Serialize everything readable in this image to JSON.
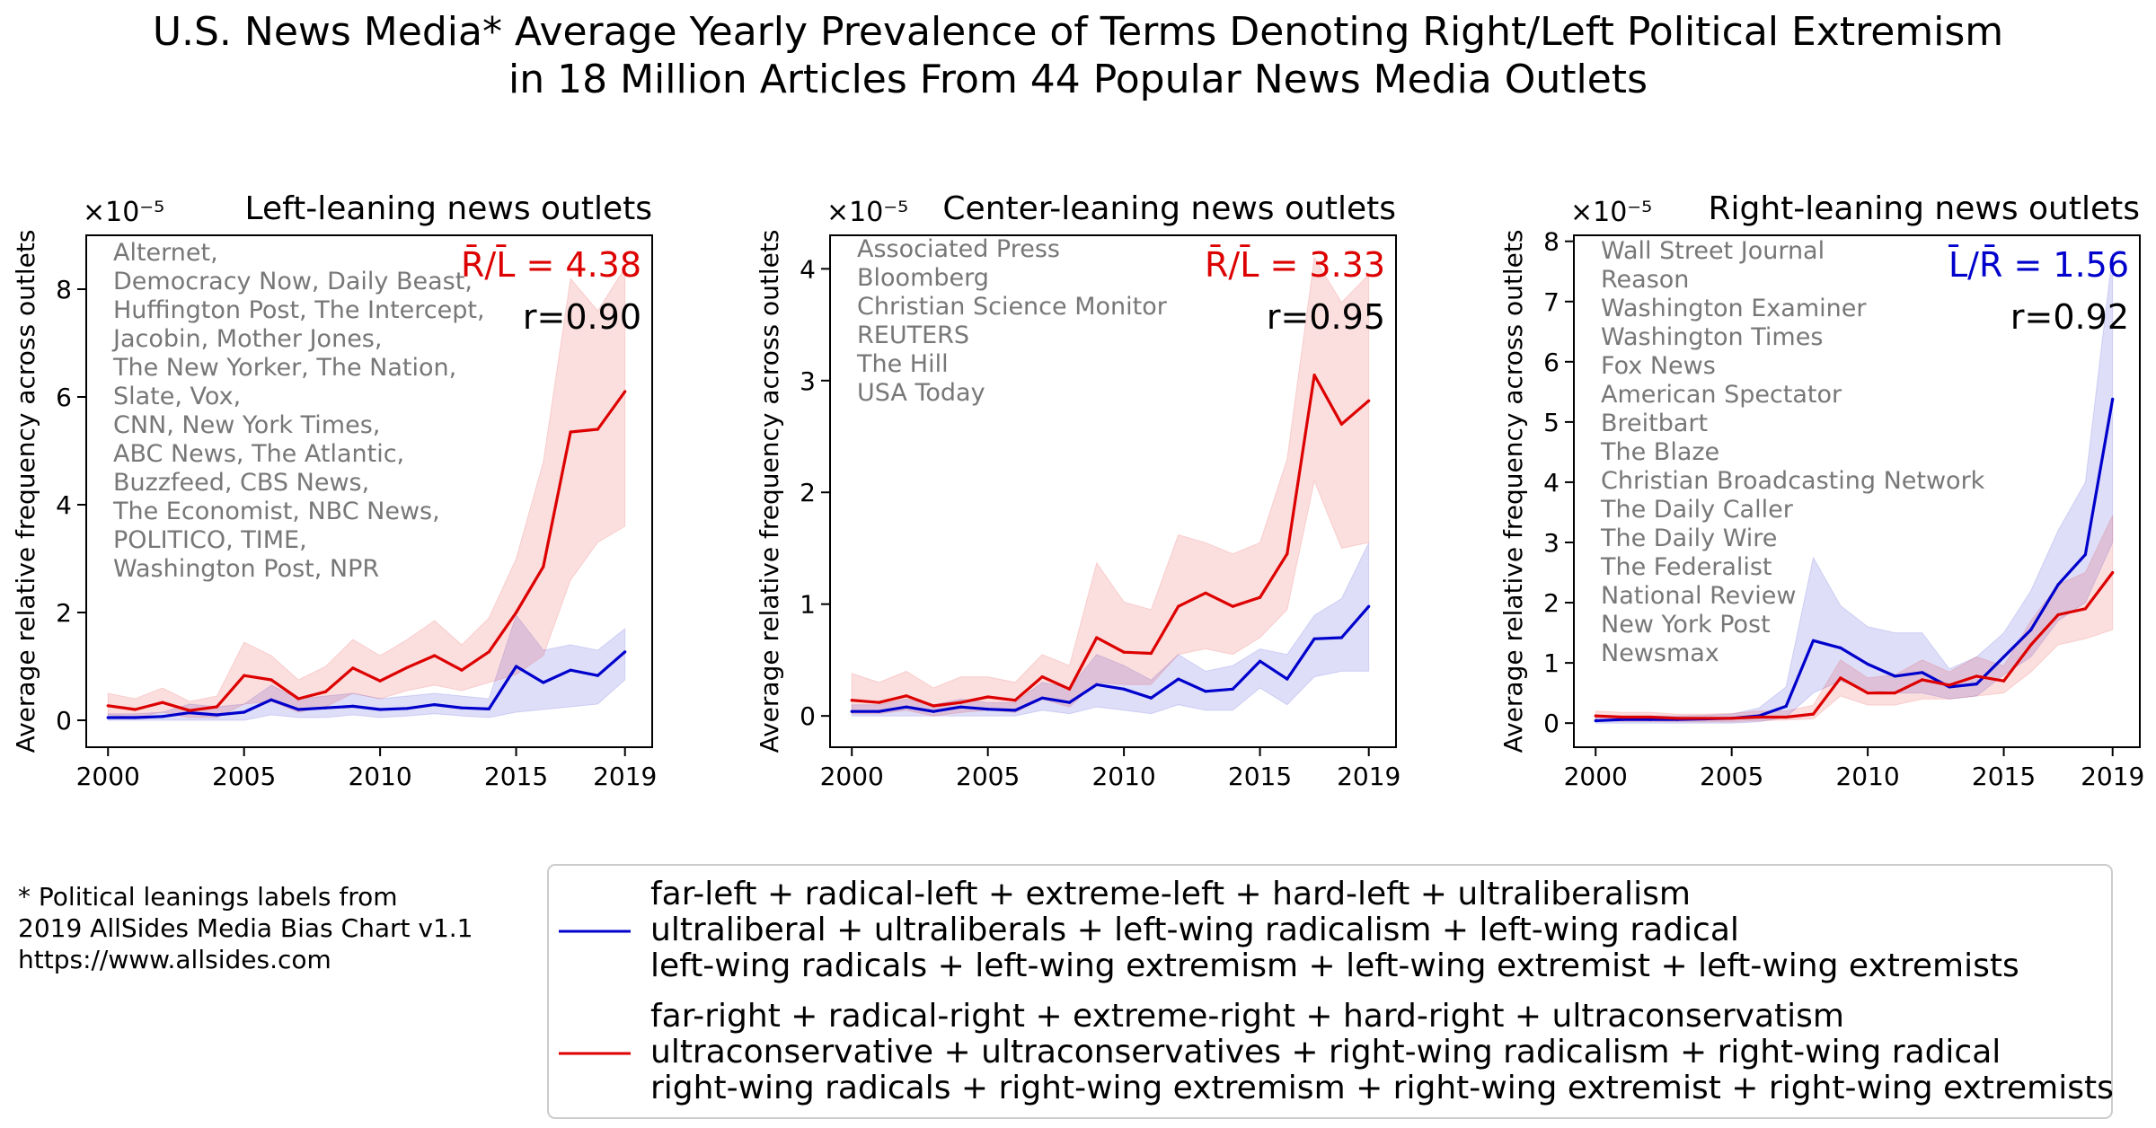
{
  "figure": {
    "title_lines": [
      "U.S. News Media* Average Yearly Prevalence of Terms Denoting Right/Left Political Extremism",
      "in 18 Million Articles From 44 Popular News Media Outlets"
    ],
    "footnote_lines": [
      "* Political leanings labels from",
      "2019 AllSides Media Bias Chart v1.1",
      "https://www.allsides.com"
    ],
    "colors": {
      "left_terms": "#0000cc",
      "right_terms": "#dd0000",
      "outlet_text": "#777777"
    }
  },
  "legend": {
    "entries": [
      {
        "color": "#0000cc",
        "lines": [
          "far-left + radical-left + extreme-left + hard-left + ultraliberalism",
          "ultraliberal + ultraliberals + left-wing radicalism + left-wing radical",
          "left-wing radicals + left-wing extremism + left-wing extremist + left-wing extremists"
        ]
      },
      {
        "color": "#dd0000",
        "lines": [
          "far-right + radical-right + extreme-right + hard-right + ultraconservatism",
          "ultraconservative + ultraconservatives + right-wing radicalism + right-wing radical",
          "right-wing radicals + right-wing extremism + right-wing extremist + right-wing extremists"
        ]
      }
    ]
  },
  "chart_data": [
    {
      "type": "line",
      "title": "Left-leaning news outlets",
      "ylabel": "Average relative frequency across outlets",
      "y_multiplier": "×10⁻⁵",
      "x": [
        2000,
        2001,
        2002,
        2003,
        2004,
        2005,
        2006,
        2007,
        2008,
        2009,
        2010,
        2011,
        2012,
        2013,
        2014,
        2015,
        2016,
        2017,
        2018,
        2019
      ],
      "xlim": [
        1999.2,
        2020.0
      ],
      "ylim": [
        -0.5,
        9.0
      ],
      "xticks": [
        "2000",
        "2005",
        "2010",
        "2015",
        "2019"
      ],
      "yticks": [
        "0",
        "2",
        "4",
        "6",
        "8"
      ],
      "ratio_label": "R̄/L̄ = 4.38",
      "ratio_color": "#dd0000",
      "r_label": "r=0.90",
      "outlets": [
        "Alternet,",
        "Democracy Now, Daily Beast,",
        "Huffington Post, The Intercept,",
        "Jacobin, Mother Jones,",
        "The New Yorker, The Nation,",
        "Slate, Vox,",
        "CNN, New York Times,",
        "ABC News, The Atlantic,",
        "Buzzfeed, CBS News,",
        "The Economist, NBC News,",
        "POLITICO, TIME,",
        "Washington Post, NPR"
      ],
      "series": [
        {
          "terms": "left",
          "color": "#0000cc",
          "values": [
            0.05,
            0.05,
            0.07,
            0.14,
            0.1,
            0.15,
            0.38,
            0.2,
            0.23,
            0.26,
            0.2,
            0.22,
            0.29,
            0.23,
            0.21,
            1.0,
            0.7,
            0.93,
            0.83,
            1.27
          ],
          "lower": [
            0.0,
            0.0,
            0.0,
            0.0,
            0.0,
            0.0,
            0.1,
            0.05,
            0.05,
            0.1,
            0.05,
            0.08,
            0.12,
            0.08,
            0.05,
            0.15,
            0.2,
            0.25,
            0.3,
            0.75
          ],
          "upper": [
            0.12,
            0.12,
            0.15,
            0.3,
            0.25,
            0.3,
            0.65,
            0.4,
            0.45,
            0.5,
            0.4,
            0.45,
            0.5,
            0.45,
            0.4,
            1.95,
            1.3,
            1.4,
            1.3,
            1.7
          ]
        },
        {
          "terms": "right",
          "color": "#dd0000",
          "values": [
            0.27,
            0.2,
            0.33,
            0.18,
            0.25,
            0.83,
            0.75,
            0.4,
            0.53,
            0.97,
            0.73,
            0.98,
            1.2,
            0.93,
            1.27,
            2.0,
            2.85,
            5.35,
            5.4,
            6.1
          ],
          "lower": [
            0.1,
            0.05,
            0.15,
            0.05,
            0.05,
            0.3,
            0.35,
            0.15,
            0.25,
            0.5,
            0.4,
            0.55,
            0.65,
            0.55,
            0.7,
            0.85,
            1.2,
            2.6,
            3.3,
            3.6
          ],
          "upper": [
            0.5,
            0.4,
            0.6,
            0.35,
            0.45,
            1.45,
            1.2,
            0.75,
            1.0,
            1.5,
            1.2,
            1.5,
            1.85,
            1.4,
            1.9,
            3.0,
            4.8,
            8.2,
            7.6,
            8.4
          ]
        }
      ]
    },
    {
      "type": "line",
      "title": "Center-leaning news outlets",
      "ylabel": "Average relative frequency across outlets",
      "y_multiplier": "×10⁻⁵",
      "x": [
        2000,
        2001,
        2002,
        2003,
        2004,
        2005,
        2006,
        2007,
        2008,
        2009,
        2010,
        2011,
        2012,
        2013,
        2014,
        2015,
        2016,
        2017,
        2018,
        2019
      ],
      "xlim": [
        1999.2,
        2020.0
      ],
      "ylim": [
        -0.28,
        4.3
      ],
      "xticks": [
        "2000",
        "2005",
        "2010",
        "2015",
        "2019"
      ],
      "yticks": [
        "0",
        "1",
        "2",
        "3",
        "4"
      ],
      "ratio_label": "R̄/L̄ = 3.33",
      "ratio_color": "#dd0000",
      "r_label": "r=0.95",
      "outlets": [
        "Associated Press",
        "Bloomberg",
        "Christian Science Monitor",
        "REUTERS",
        "The Hill",
        "USA Today"
      ],
      "series": [
        {
          "terms": "left",
          "color": "#0000cc",
          "values": [
            0.04,
            0.04,
            0.08,
            0.04,
            0.08,
            0.06,
            0.05,
            0.16,
            0.12,
            0.28,
            0.24,
            0.16,
            0.33,
            0.22,
            0.24,
            0.49,
            0.33,
            0.69,
            0.7,
            0.98
          ],
          "lower": [
            0.0,
            0.0,
            0.0,
            0.0,
            0.0,
            0.0,
            0.0,
            0.05,
            0.02,
            0.08,
            0.05,
            0.02,
            0.1,
            0.05,
            0.05,
            0.25,
            0.1,
            0.35,
            0.4,
            0.4
          ],
          "upper": [
            0.1,
            0.1,
            0.15,
            0.1,
            0.15,
            0.12,
            0.12,
            0.3,
            0.25,
            0.55,
            0.45,
            0.32,
            0.55,
            0.4,
            0.45,
            0.6,
            0.55,
            0.9,
            1.05,
            1.55
          ]
        },
        {
          "terms": "right",
          "color": "#dd0000",
          "values": [
            0.14,
            0.12,
            0.18,
            0.09,
            0.12,
            0.17,
            0.14,
            0.35,
            0.24,
            0.7,
            0.57,
            0.56,
            0.98,
            1.1,
            0.98,
            1.06,
            1.45,
            3.05,
            2.61,
            2.82
          ],
          "lower": [
            0.02,
            0.02,
            0.05,
            0.0,
            0.03,
            0.05,
            0.03,
            0.15,
            0.08,
            0.3,
            0.28,
            0.28,
            0.55,
            0.6,
            0.55,
            0.7,
            0.95,
            2.1,
            1.5,
            1.55
          ],
          "upper": [
            0.38,
            0.3,
            0.4,
            0.25,
            0.35,
            0.35,
            0.3,
            0.55,
            0.45,
            1.37,
            1.02,
            0.95,
            1.62,
            1.55,
            1.45,
            1.55,
            2.3,
            4.1,
            3.7,
            3.95
          ]
        }
      ]
    },
    {
      "type": "line",
      "title": "Right-leaning news outlets",
      "ylabel": "Average relative frequency across outlets",
      "y_multiplier": "×10⁻⁵",
      "x": [
        2000,
        2001,
        2002,
        2003,
        2004,
        2005,
        2006,
        2007,
        2008,
        2009,
        2010,
        2011,
        2012,
        2013,
        2014,
        2015,
        2016,
        2017,
        2018,
        2019
      ],
      "xlim": [
        1999.2,
        2020.0
      ],
      "ylim": [
        -0.4,
        8.1
      ],
      "xticks": [
        "2000",
        "2005",
        "2010",
        "2015",
        "2019"
      ],
      "yticks": [
        "0",
        "1",
        "2",
        "3",
        "4",
        "5",
        "6",
        "7",
        "8"
      ],
      "ratio_label": "L̄/R̄ = 1.56",
      "ratio_color": "#0000cc",
      "r_label": "r=0.92",
      "outlets": [
        "Wall Street Journal",
        "Reason",
        "Washington Examiner",
        "Washington Times",
        "Fox News",
        "American Spectator",
        "Breitbart",
        "The Blaze",
        "Christian Broadcasting Network",
        "The Daily Caller",
        "The Daily Wire",
        "The Federalist",
        "National Review",
        "New York Post",
        "Newsmax"
      ],
      "series": [
        {
          "terms": "left",
          "color": "#0000cc",
          "values": [
            0.04,
            0.06,
            0.06,
            0.06,
            0.07,
            0.08,
            0.12,
            0.28,
            1.37,
            1.25,
            0.98,
            0.78,
            0.84,
            0.6,
            0.65,
            1.1,
            1.55,
            2.3,
            2.8,
            5.38
          ],
          "lower": [
            0.0,
            0.0,
            0.0,
            0.0,
            0.0,
            0.0,
            0.02,
            0.1,
            0.5,
            0.7,
            0.55,
            0.5,
            0.5,
            0.4,
            0.45,
            0.8,
            1.1,
            1.7,
            2.0,
            3.0
          ],
          "upper": [
            0.1,
            0.12,
            0.12,
            0.12,
            0.13,
            0.15,
            0.25,
            0.6,
            2.75,
            1.95,
            1.6,
            1.5,
            1.5,
            0.9,
            1.1,
            1.5,
            2.2,
            3.2,
            4.0,
            7.8
          ]
        },
        {
          "terms": "right",
          "color": "#dd0000",
          "values": [
            0.12,
            0.1,
            0.1,
            0.08,
            0.08,
            0.08,
            0.1,
            0.1,
            0.15,
            0.75,
            0.5,
            0.5,
            0.72,
            0.63,
            0.78,
            0.7,
            1.3,
            1.8,
            1.9,
            2.5
          ],
          "lower": [
            0.04,
            0.03,
            0.03,
            0.02,
            0.02,
            0.02,
            0.04,
            0.05,
            0.07,
            0.45,
            0.3,
            0.3,
            0.4,
            0.4,
            0.45,
            0.5,
            0.85,
            1.3,
            1.4,
            1.55
          ],
          "upper": [
            0.2,
            0.18,
            0.18,
            0.15,
            0.15,
            0.16,
            0.2,
            0.2,
            0.3,
            1.05,
            0.75,
            0.8,
            1.05,
            0.85,
            1.1,
            0.95,
            1.7,
            2.3,
            2.5,
            3.45
          ]
        }
      ]
    }
  ]
}
